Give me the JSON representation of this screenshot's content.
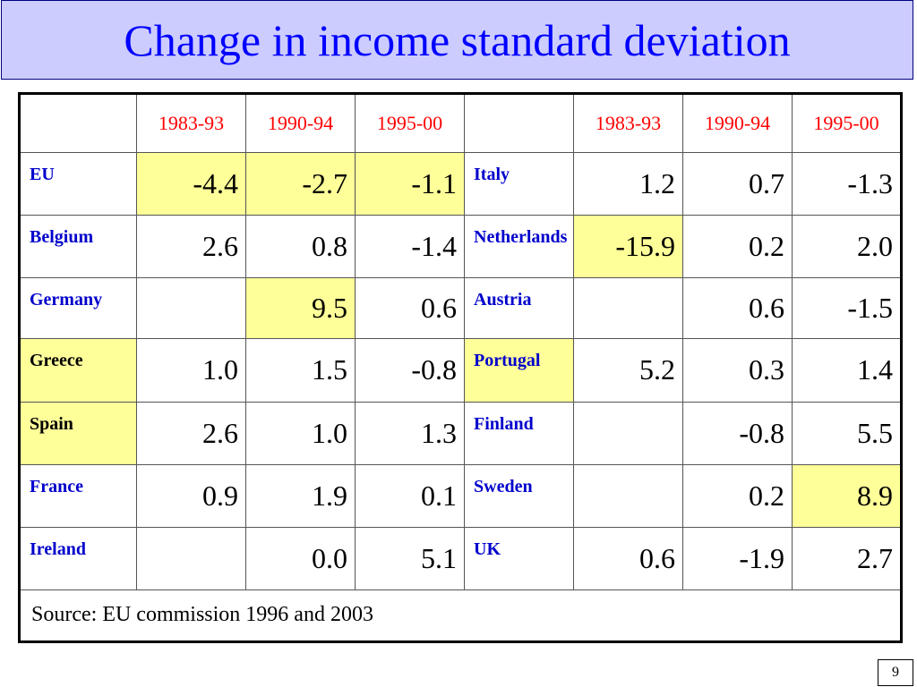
{
  "title": "Change in income standard deviation",
  "headers": {
    "left": [
      "1983-93",
      "1990-94",
      "1995-00"
    ],
    "right": [
      "1983-93",
      "1990-94",
      "1995-00"
    ]
  },
  "rows": [
    {
      "left_name": "EU",
      "left": [
        "-4.4",
        "-2.7",
        "-1.1"
      ],
      "right_name": "Italy",
      "right": [
        "1.2",
        "0.7",
        "-1.3"
      ]
    },
    {
      "left_name": "Belgium",
      "left": [
        "2.6",
        "0.8",
        "-1.4"
      ],
      "right_name": "Netherlands",
      "right": [
        "-15.9",
        "0.2",
        "2.0"
      ]
    },
    {
      "left_name": "Germany",
      "left": [
        "",
        "9.5",
        "0.6"
      ],
      "right_name": "Austria",
      "right": [
        "",
        "0.6",
        "-1.5"
      ]
    },
    {
      "left_name": "Greece",
      "left": [
        "1.0",
        "1.5",
        "-0.8"
      ],
      "right_name": "Portugal",
      "right": [
        "5.2",
        "0.3",
        "1.4"
      ]
    },
    {
      "left_name": "Spain",
      "left": [
        "2.6",
        "1.0",
        "1.3"
      ],
      "right_name": "Finland",
      "right": [
        "",
        "-0.8",
        "5.5"
      ]
    },
    {
      "left_name": "France",
      "left": [
        "0.9",
        "1.9",
        "0.1"
      ],
      "right_name": "Sweden",
      "right": [
        "",
        "0.2",
        "8.9"
      ]
    },
    {
      "left_name": "Ireland",
      "left": [
        "",
        "0.0",
        "5.1"
      ],
      "right_name": "UK",
      "right": [
        "0.6",
        "-1.9",
        "2.7"
      ]
    }
  ],
  "source": "Source: EU commission 1996 and 2003",
  "page_number": "9",
  "colors": {
    "title_bg": "#ccccff",
    "title_text": "#0000ff",
    "header_text": "#ff0000",
    "country_text": "#0000cc",
    "highlight": "#ffff99"
  }
}
